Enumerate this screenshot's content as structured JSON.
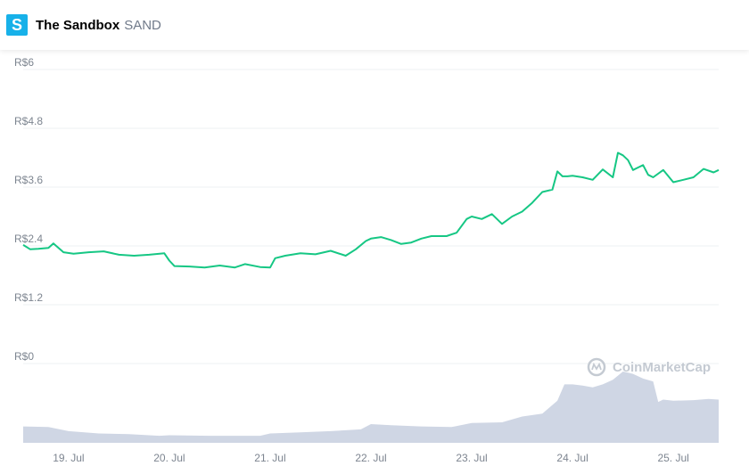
{
  "header": {
    "logo_letter": "S",
    "name": "The Sandbox",
    "symbol": "SAND"
  },
  "watermark": "CoinMarketCap",
  "colors": {
    "price_line": "#16c784",
    "volume_fill": "#cfd6e4",
    "grid": "#eef0f3",
    "logo_bg": "#17b1e9"
  },
  "chart_data": {
    "type": "line",
    "title": "",
    "y_axis": {
      "min": 0,
      "max": 6,
      "ticks": [
        0,
        1.2,
        2.4,
        3.6,
        4.8,
        6
      ],
      "tick_labels": [
        "R$0",
        "R$1.2",
        "R$2.4",
        "R$3.6",
        "R$4.8",
        "R$6"
      ]
    },
    "x_axis": {
      "min": 18.55,
      "max": 25.45,
      "ticks": [
        19,
        20,
        21,
        22,
        23,
        24,
        25
      ],
      "tick_labels": [
        "19. Jul",
        "20. Jul",
        "21. Jul",
        "22. Jul",
        "23. Jul",
        "24. Jul",
        "25. Jul"
      ]
    },
    "grid": true,
    "series": [
      {
        "kind": "price",
        "x": [
          18.55,
          18.62,
          18.7,
          18.8,
          18.85,
          18.95,
          19.05,
          19.2,
          19.35,
          19.5,
          19.65,
          19.8,
          19.95,
          20.0,
          20.05,
          20.2,
          20.35,
          20.5,
          20.65,
          20.75,
          20.9,
          21.0,
          21.05,
          21.15,
          21.3,
          21.45,
          21.6,
          21.75,
          21.85,
          21.95,
          22.0,
          22.1,
          22.2,
          22.3,
          22.4,
          22.5,
          22.6,
          22.75,
          22.85,
          22.95,
          23.0,
          23.1,
          23.2,
          23.3,
          23.4,
          23.5,
          23.6,
          23.7,
          23.8,
          23.85,
          23.9,
          23.95,
          24.0,
          24.1,
          24.2,
          24.3,
          24.4,
          24.45,
          24.5,
          24.55,
          24.6,
          24.65,
          24.7,
          24.75,
          24.8,
          24.9,
          25.0,
          25.1,
          25.2,
          25.3,
          25.4,
          25.45
        ],
        "y": [
          2.42,
          2.33,
          2.34,
          2.36,
          2.45,
          2.27,
          2.24,
          2.27,
          2.29,
          2.22,
          2.2,
          2.22,
          2.25,
          2.1,
          1.99,
          1.98,
          1.96,
          2.0,
          1.96,
          2.03,
          1.97,
          1.96,
          2.15,
          2.2,
          2.25,
          2.23,
          2.3,
          2.2,
          2.33,
          2.5,
          2.55,
          2.58,
          2.52,
          2.44,
          2.47,
          2.55,
          2.6,
          2.6,
          2.67,
          2.95,
          3.0,
          2.95,
          3.05,
          2.85,
          3.0,
          3.1,
          3.28,
          3.5,
          3.55,
          3.92,
          3.82,
          3.82,
          3.83,
          3.8,
          3.75,
          3.96,
          3.8,
          4.3,
          4.25,
          4.15,
          3.95,
          4.0,
          4.05,
          3.85,
          3.8,
          3.95,
          3.7,
          3.75,
          3.8,
          3.97,
          3.9,
          3.95
        ]
      },
      {
        "kind": "volume",
        "x": [
          18.55,
          18.8,
          19.0,
          19.3,
          19.6,
          19.9,
          20.0,
          20.4,
          20.9,
          21.0,
          21.3,
          21.6,
          21.9,
          22.0,
          22.2,
          22.5,
          22.8,
          23.0,
          23.3,
          23.5,
          23.7,
          23.85,
          23.92,
          24.0,
          24.1,
          24.2,
          24.3,
          24.4,
          24.45,
          24.5,
          24.55,
          24.6,
          24.7,
          24.8,
          24.85,
          24.9,
          25.0,
          25.2,
          25.35,
          25.45
        ],
        "y": [
          0.28,
          0.27,
          0.2,
          0.16,
          0.15,
          0.12,
          0.13,
          0.12,
          0.12,
          0.16,
          0.18,
          0.2,
          0.23,
          0.32,
          0.3,
          0.28,
          0.27,
          0.34,
          0.35,
          0.45,
          0.5,
          0.72,
          1.0,
          1.0,
          0.98,
          0.95,
          1.0,
          1.08,
          1.15,
          1.22,
          1.2,
          1.18,
          1.1,
          1.05,
          0.7,
          0.74,
          0.72,
          0.73,
          0.75,
          0.74
        ]
      }
    ]
  }
}
